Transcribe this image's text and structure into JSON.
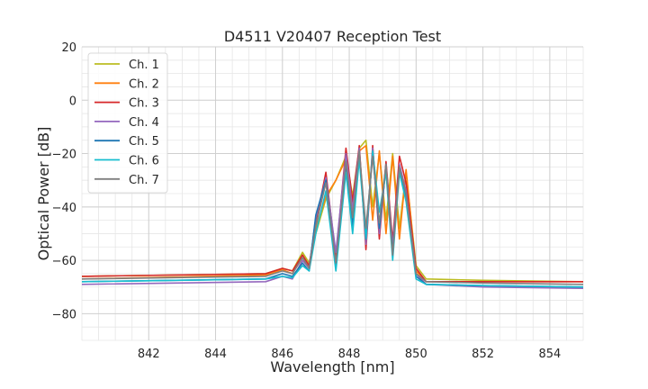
{
  "chart_data": {
    "type": "line",
    "title": "D4511 V20407 Reception Test",
    "xlabel": "Wavelength [nm]",
    "ylabel": "Optical Power [dB]",
    "xlim": [
      840.0,
      855.0
    ],
    "ylim": [
      -90,
      20
    ],
    "x_major_ticks": [
      842,
      844,
      846,
      848,
      850,
      852,
      854
    ],
    "x_tick_labels": [
      "842",
      "844",
      "846",
      "848",
      "850",
      "852",
      "854"
    ],
    "y_major_ticks": [
      -80,
      -60,
      -40,
      -20,
      0,
      20
    ],
    "y_tick_labels": [
      "−80",
      "−60",
      "−40",
      "−20",
      "0",
      "20"
    ],
    "grid": true,
    "grid_minor": true,
    "legend_position": "top-left",
    "series": [
      {
        "name": "Ch. 1",
        "color": "#bcbd22",
        "x": [
          840.0,
          845.5,
          846.0,
          846.3,
          846.6,
          846.8,
          847.0,
          847.3,
          847.6,
          847.9,
          848.1,
          848.3,
          848.5,
          848.7,
          848.9,
          849.1,
          849.3,
          849.5,
          849.7,
          850.0,
          850.3,
          852.0,
          855.0
        ],
        "y": [
          -66,
          -65,
          -63,
          -64,
          -57,
          -61,
          -50,
          -37,
          -30,
          -21,
          -36,
          -18,
          -15,
          -40,
          -20,
          -45,
          -20,
          -48,
          -27,
          -62,
          -67,
          -67.5,
          -68
        ]
      },
      {
        "name": "Ch. 2",
        "color": "#ff7f0e",
        "x": [
          840.0,
          845.5,
          846.0,
          846.3,
          846.6,
          846.8,
          847.0,
          847.3,
          847.6,
          847.9,
          848.1,
          848.3,
          848.5,
          848.7,
          848.9,
          849.1,
          849.3,
          849.5,
          849.7,
          850.0,
          850.3,
          852.0,
          855.0
        ],
        "y": [
          -67,
          -65.5,
          -63.5,
          -65,
          -59,
          -62,
          -48,
          -36,
          -30,
          -22,
          -40,
          -19,
          -17,
          -45,
          -19,
          -50,
          -21,
          -52,
          -26,
          -64,
          -68,
          -68,
          -68
        ]
      },
      {
        "name": "Ch. 3",
        "color": "#d62728",
        "x": [
          840.0,
          845.5,
          846.0,
          846.3,
          846.6,
          846.8,
          847.0,
          847.3,
          847.6,
          847.9,
          848.1,
          848.3,
          848.5,
          848.7,
          848.9,
          849.1,
          849.3,
          849.5,
          849.7,
          850.0,
          850.3,
          852.0,
          855.0
        ],
        "y": [
          -66,
          -65,
          -63,
          -64,
          -58,
          -62,
          -46,
          -27,
          -59,
          -18,
          -38,
          -17,
          -56,
          -17,
          -52,
          -23,
          -53,
          -21,
          -31,
          -63,
          -68,
          -68,
          -68
        ]
      },
      {
        "name": "Ch. 4",
        "color": "#9467bd",
        "x": [
          840.0,
          845.5,
          846.0,
          846.3,
          846.6,
          846.8,
          847.0,
          847.3,
          847.6,
          847.9,
          848.1,
          848.3,
          848.5,
          848.7,
          848.9,
          849.1,
          849.3,
          849.5,
          849.7,
          850.0,
          850.3,
          852.0,
          855.0
        ],
        "y": [
          -69,
          -68,
          -66,
          -67,
          -60,
          -63,
          -44,
          -29,
          -57,
          -20,
          -41,
          -18,
          -54,
          -18,
          -50,
          -24,
          -55,
          -24,
          -34,
          -65,
          -69,
          -70,
          -70.5
        ]
      },
      {
        "name": "Ch. 5",
        "color": "#1f77b4",
        "x": [
          840.0,
          845.5,
          846.0,
          846.3,
          846.6,
          846.8,
          847.0,
          847.3,
          847.6,
          847.9,
          848.1,
          848.3,
          848.5,
          848.7,
          848.9,
          849.1,
          849.3,
          849.5,
          849.7,
          850.0,
          850.3,
          852.0,
          855.0
        ],
        "y": [
          -68,
          -67,
          -65,
          -66,
          -61,
          -64,
          -43,
          -30,
          -62,
          -24,
          -47,
          -20,
          -50,
          -20,
          -48,
          -25,
          -57,
          -26,
          -36,
          -66,
          -69,
          -69.5,
          -70
        ]
      },
      {
        "name": "Ch. 6",
        "color": "#17becf",
        "x": [
          840.0,
          845.5,
          846.0,
          846.3,
          846.6,
          846.8,
          847.0,
          847.3,
          847.6,
          847.9,
          848.1,
          848.3,
          848.5,
          848.7,
          848.9,
          849.1,
          849.3,
          849.5,
          849.7,
          850.0,
          850.3,
          852.0,
          855.0
        ],
        "y": [
          -68,
          -67,
          -66,
          -66.5,
          -62,
          -64,
          -50,
          -34,
          -64,
          -27,
          -50,
          -22,
          -52,
          -19,
          -42,
          -27,
          -60,
          -27,
          -38,
          -67,
          -69,
          -69.5,
          -70
        ]
      },
      {
        "name": "Ch. 7",
        "color": "#7f7f7f",
        "x": [
          840.0,
          845.5,
          846.0,
          846.3,
          846.6,
          846.8,
          847.0,
          847.3,
          847.6,
          847.9,
          848.1,
          848.3,
          848.5,
          848.7,
          848.9,
          849.1,
          849.3,
          849.5,
          849.7,
          850.0,
          850.3,
          852.0,
          855.0
        ],
        "y": [
          -67,
          -66,
          -64,
          -65,
          -59,
          -63,
          -47,
          -31,
          -61,
          -23,
          -44,
          -19,
          -48,
          -21,
          -46,
          -24,
          -58,
          -25,
          -35,
          -65,
          -68,
          -68.5,
          -69
        ]
      }
    ]
  }
}
